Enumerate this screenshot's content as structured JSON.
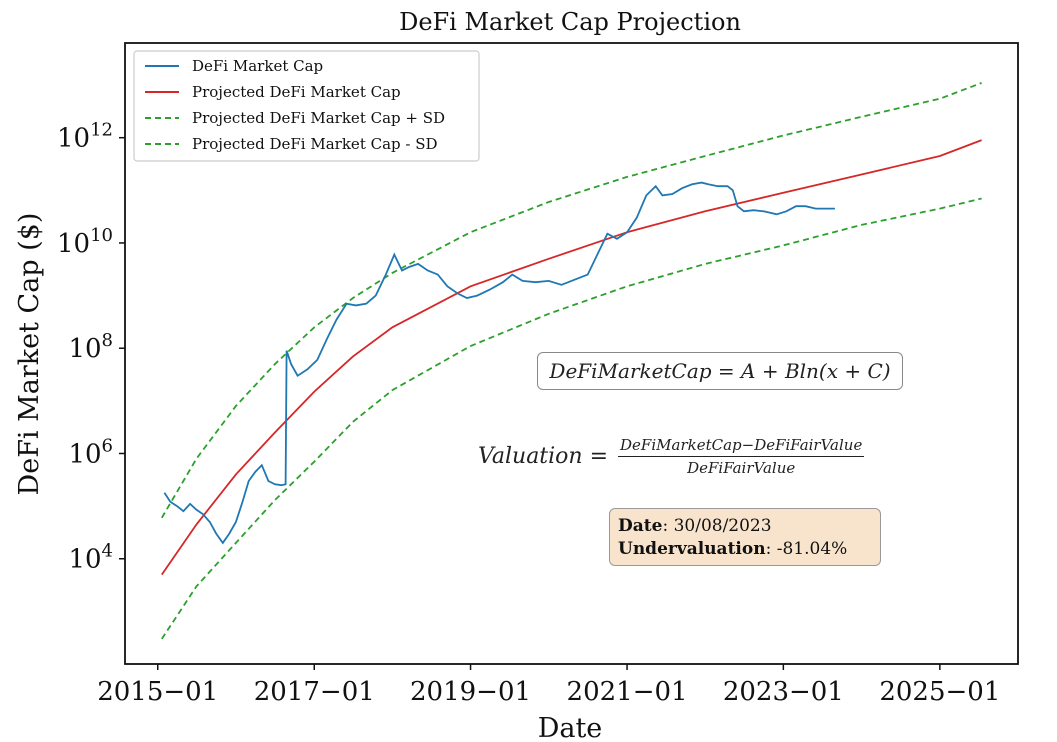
{
  "chart_data": {
    "type": "line",
    "title": "DeFi Market Cap Projection",
    "xlabel": "Date",
    "ylabel": "DeFi Market Cap ($)",
    "y_scale": "log",
    "xlim": [
      "2014-08-01",
      "2026-01-01"
    ],
    "ylim": [
      100.0,
      63000000000000.0
    ],
    "x_ticks": [
      "2015-01",
      "2017-01",
      "2019-01",
      "2021-01",
      "2023-01",
      "2025-01"
    ],
    "y_ticks": [
      {
        "value": 10000.0,
        "base": "10",
        "exp": "4"
      },
      {
        "value": 1000000.0,
        "base": "10",
        "exp": "6"
      },
      {
        "value": 100000000.0,
        "base": "10",
        "exp": "8"
      },
      {
        "value": 10000000000.0,
        "base": "10",
        "exp": "10"
      },
      {
        "value": 1000000000000.0,
        "base": "10",
        "exp": "12"
      }
    ],
    "grid": false,
    "legend": "top-left",
    "series": [
      {
        "name": "DeFi Market Cap",
        "color": "#1f77b4",
        "style": "solid",
        "points": [
          [
            "2015-02-01",
            180000.0
          ],
          [
            "2015-03-01",
            120000.0
          ],
          [
            "2015-04-01",
            100000.0
          ],
          [
            "2015-05-01",
            80000.0
          ],
          [
            "2015-06-01",
            110000.0
          ],
          [
            "2015-07-01",
            85000.0
          ],
          [
            "2015-08-01",
            70000.0
          ],
          [
            "2015-09-01",
            50000.0
          ],
          [
            "2015-10-01",
            30000.0
          ],
          [
            "2015-11-01",
            20000.0
          ],
          [
            "2015-12-01",
            30000.0
          ],
          [
            "2016-01-01",
            50000.0
          ],
          [
            "2016-02-01",
            120000.0
          ],
          [
            "2016-03-01",
            300000.0
          ],
          [
            "2016-04-01",
            450000.0
          ],
          [
            "2016-05-01",
            600000.0
          ],
          [
            "2016-06-01",
            300000.0
          ],
          [
            "2016-07-01",
            260000.0
          ],
          [
            "2016-08-01",
            250000.0
          ],
          [
            "2016-08-20",
            260000.0
          ],
          [
            "2016-08-25",
            90000000.0
          ],
          [
            "2016-09-15",
            50000000.0
          ],
          [
            "2016-10-15",
            30000000.0
          ],
          [
            "2016-12-01",
            40000000.0
          ],
          [
            "2017-01-15",
            60000000.0
          ],
          [
            "2017-03-01",
            150000000.0
          ],
          [
            "2017-04-15",
            350000000.0
          ],
          [
            "2017-06-01",
            700000000.0
          ],
          [
            "2017-07-15",
            650000000.0
          ],
          [
            "2017-09-01",
            700000000.0
          ],
          [
            "2017-10-15",
            1000000000.0
          ],
          [
            "2017-12-01",
            2500000000.0
          ],
          [
            "2018-01-10",
            6000000000.0
          ],
          [
            "2018-02-15",
            3000000000.0
          ],
          [
            "2018-03-20",
            3500000000.0
          ],
          [
            "2018-05-01",
            4000000000.0
          ],
          [
            "2018-06-15",
            3000000000.0
          ],
          [
            "2018-08-01",
            2500000000.0
          ],
          [
            "2018-09-15",
            1500000000.0
          ],
          [
            "2018-11-01",
            1100000000.0
          ],
          [
            "2018-12-15",
            900000000.0
          ],
          [
            "2019-02-01",
            1000000000.0
          ],
          [
            "2019-04-01",
            1300000000.0
          ],
          [
            "2019-06-01",
            1800000000.0
          ],
          [
            "2019-07-15",
            2500000000.0
          ],
          [
            "2019-09-01",
            1900000000.0
          ],
          [
            "2019-11-01",
            1800000000.0
          ],
          [
            "2020-01-01",
            1900000000.0
          ],
          [
            "2020-03-01",
            1600000000.0
          ],
          [
            "2020-05-01",
            2000000000.0
          ],
          [
            "2020-07-01",
            2500000000.0
          ],
          [
            "2020-08-15",
            6000000000.0
          ],
          [
            "2020-10-01",
            15000000000.0
          ],
          [
            "2020-11-15",
            12000000000.0
          ],
          [
            "2021-01-01",
            16000000000.0
          ],
          [
            "2021-02-15",
            30000000000.0
          ],
          [
            "2021-04-01",
            80000000000.0
          ],
          [
            "2021-05-15",
            120000000000.0
          ],
          [
            "2021-06-15",
            80000000000.0
          ],
          [
            "2021-08-01",
            85000000000.0
          ],
          [
            "2021-09-15",
            110000000000.0
          ],
          [
            "2021-11-01",
            130000000000.0
          ],
          [
            "2021-12-15",
            140000000000.0
          ],
          [
            "2022-01-15",
            130000000000.0
          ],
          [
            "2022-03-01",
            120000000000.0
          ],
          [
            "2022-04-15",
            120000000000.0
          ],
          [
            "2022-05-10",
            100000000000.0
          ],
          [
            "2022-06-01",
            50000000000.0
          ],
          [
            "2022-07-01",
            40000000000.0
          ],
          [
            "2022-08-15",
            42000000000.0
          ],
          [
            "2022-10-01",
            40000000000.0
          ],
          [
            "2022-12-01",
            35000000000.0
          ],
          [
            "2023-01-15",
            40000000000.0
          ],
          [
            "2023-03-01",
            50000000000.0
          ],
          [
            "2023-04-15",
            50000000000.0
          ],
          [
            "2023-06-01",
            45000000000.0
          ],
          [
            "2023-08-30",
            45000000000.0
          ]
        ]
      },
      {
        "name": "Projected DeFi Market Cap",
        "color": "#d62728",
        "style": "solid",
        "points": [
          [
            "2015-01-20",
            5000.0
          ],
          [
            "2015-07-01",
            45000.0
          ],
          [
            "2016-01-01",
            400000.0
          ],
          [
            "2016-07-01",
            2500000.0
          ],
          [
            "2017-01-01",
            15000000.0
          ],
          [
            "2017-07-01",
            70000000.0
          ],
          [
            "2018-01-01",
            250000000.0
          ],
          [
            "2019-01-01",
            1500000000.0
          ],
          [
            "2020-01-01",
            5000000000.0
          ],
          [
            "2021-01-01",
            16000000000.0
          ],
          [
            "2022-01-01",
            40000000000.0
          ],
          [
            "2023-01-01",
            90000000000.0
          ],
          [
            "2024-01-01",
            200000000000.0
          ],
          [
            "2025-01-01",
            450000000000.0
          ],
          [
            "2025-07-15",
            900000000000.0
          ]
        ]
      },
      {
        "name": "Projected DeFi Market Cap + SD",
        "color": "#2ca02c",
        "style": "dashed",
        "points": [
          [
            "2015-01-20",
            60000.0
          ],
          [
            "2015-07-01",
            800000.0
          ],
          [
            "2016-01-01",
            8000000.0
          ],
          [
            "2016-07-01",
            50000000.0
          ],
          [
            "2017-01-01",
            250000000.0
          ],
          [
            "2017-07-01",
            900000000.0
          ],
          [
            "2018-01-01",
            2700000000.0
          ],
          [
            "2019-01-01",
            16000000000.0
          ],
          [
            "2020-01-01",
            60000000000.0
          ],
          [
            "2021-01-01",
            180000000000.0
          ],
          [
            "2022-01-01",
            450000000000.0
          ],
          [
            "2023-01-01",
            1100000000000.0
          ],
          [
            "2024-01-01",
            2500000000000.0
          ],
          [
            "2025-01-01",
            5500000000000.0
          ],
          [
            "2025-07-15",
            11000000000000.0
          ]
        ]
      },
      {
        "name": "Projected DeFi Market Cap - SD",
        "color": "#2ca02c",
        "style": "dashed",
        "points": [
          [
            "2015-01-20",
            300.0
          ],
          [
            "2015-07-01",
            3000.0
          ],
          [
            "2016-01-01",
            20000.0
          ],
          [
            "2016-07-01",
            130000.0
          ],
          [
            "2017-01-01",
            700000.0
          ],
          [
            "2017-07-01",
            4000000.0
          ],
          [
            "2018-01-01",
            16000000.0
          ],
          [
            "2019-01-01",
            110000000.0
          ],
          [
            "2020-01-01",
            450000000.0
          ],
          [
            "2021-01-01",
            1500000000.0
          ],
          [
            "2022-01-01",
            4000000000.0
          ],
          [
            "2023-01-01",
            9000000000.0
          ],
          [
            "2024-01-01",
            22000000000.0
          ],
          [
            "2025-01-01",
            45000000000.0
          ],
          [
            "2025-07-15",
            70000000000.0
          ]
        ]
      }
    ]
  },
  "annotations": {
    "formula": "DeFiMarketCap = A + Bln(x + C)",
    "valuation_lhs": "Valuation =",
    "valuation_numerator": "DeFiMarketCap−DeFiFairValue",
    "valuation_denominator": "DeFiFairValue",
    "date_label": "Date",
    "date_value": "30/08/2023",
    "underval_label": "Undervaluation",
    "underval_value": "-81.04%",
    "info_box_color": "#f8e4cd"
  }
}
